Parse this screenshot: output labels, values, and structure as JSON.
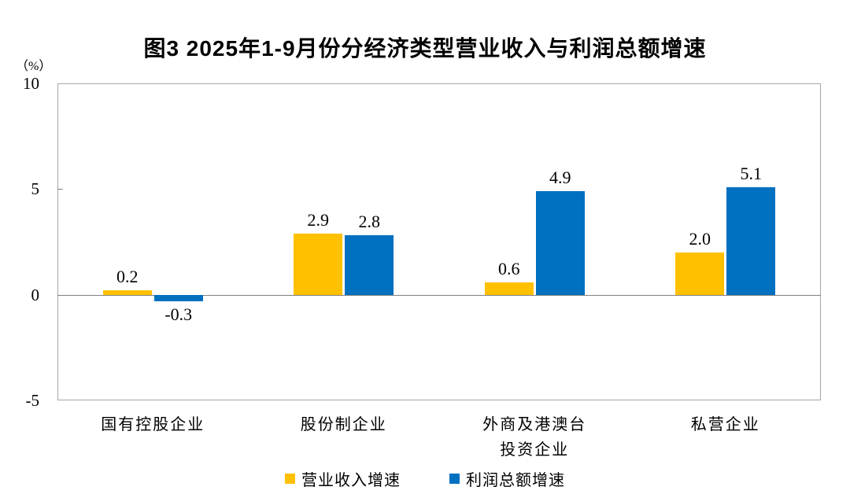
{
  "chart_data": {
    "type": "bar",
    "title": "图3 2025年1-9月份分经济类型营业收入与利润总额增速",
    "ylabel": "（%）",
    "xlabel": "",
    "ylim": [
      -5,
      10
    ],
    "yticks": [
      10,
      5,
      0,
      -5
    ],
    "grid": false,
    "legend_position": "bottom",
    "categories": [
      "国有控股企业",
      "股份制企业",
      "外商及港澳台\n投资企业",
      "私营企业"
    ],
    "series": [
      {
        "name": "营业收入增速",
        "color": "#FFC000",
        "values": [
          0.2,
          2.9,
          0.6,
          2.0
        ]
      },
      {
        "name": "利润总额增速",
        "color": "#0070C0",
        "values": [
          -0.3,
          2.8,
          4.9,
          5.1
        ]
      }
    ],
    "value_label_decimals": 1
  },
  "colors": {
    "revenue_bar": "#FFC000",
    "profit_bar": "#0070C0",
    "plot_border": "#a6a6a6",
    "zero_line": "#808080",
    "text": "#000000",
    "background": "#ffffff"
  }
}
